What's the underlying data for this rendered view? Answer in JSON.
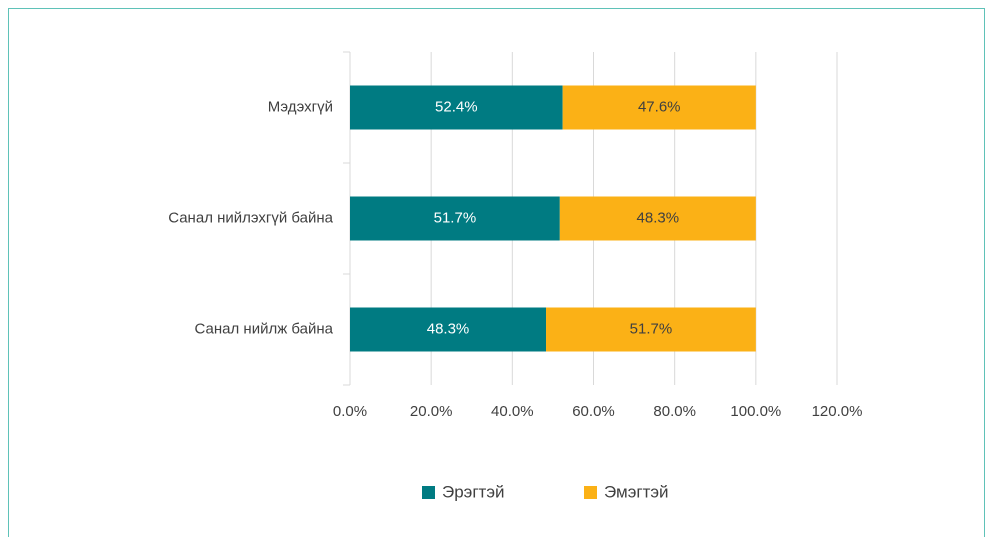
{
  "chart_data": {
    "type": "stacked_barh",
    "categories": [
      "Мэдэхгүй",
      "Санал нийлэхгүй байна",
      "Санал нийлж байна"
    ],
    "series": [
      {
        "name": "Эрэгтэй",
        "color": "#007b82",
        "values": [
          52.4,
          51.7,
          48.3
        ],
        "value_labels": [
          "52.4%",
          "51.7%",
          "48.3%"
        ]
      },
      {
        "name": "Эмэгтэй",
        "color": "#fbb116",
        "values": [
          47.6,
          48.3,
          51.7
        ],
        "value_labels": [
          "47.6%",
          "48.3%",
          "51.7%"
        ]
      }
    ],
    "xlim": [
      0,
      120
    ],
    "xticks": [
      {
        "value": 0,
        "label": "0.0%"
      },
      {
        "value": 20,
        "label": "20.0%"
      },
      {
        "value": 40,
        "label": "40.0%"
      },
      {
        "value": 60,
        "label": "60.0%"
      },
      {
        "value": 80,
        "label": "80.0%"
      },
      {
        "value": 100,
        "label": "100.0%"
      },
      {
        "value": 120,
        "label": "120.0%"
      }
    ],
    "grid": true,
    "legend": "bottom"
  }
}
